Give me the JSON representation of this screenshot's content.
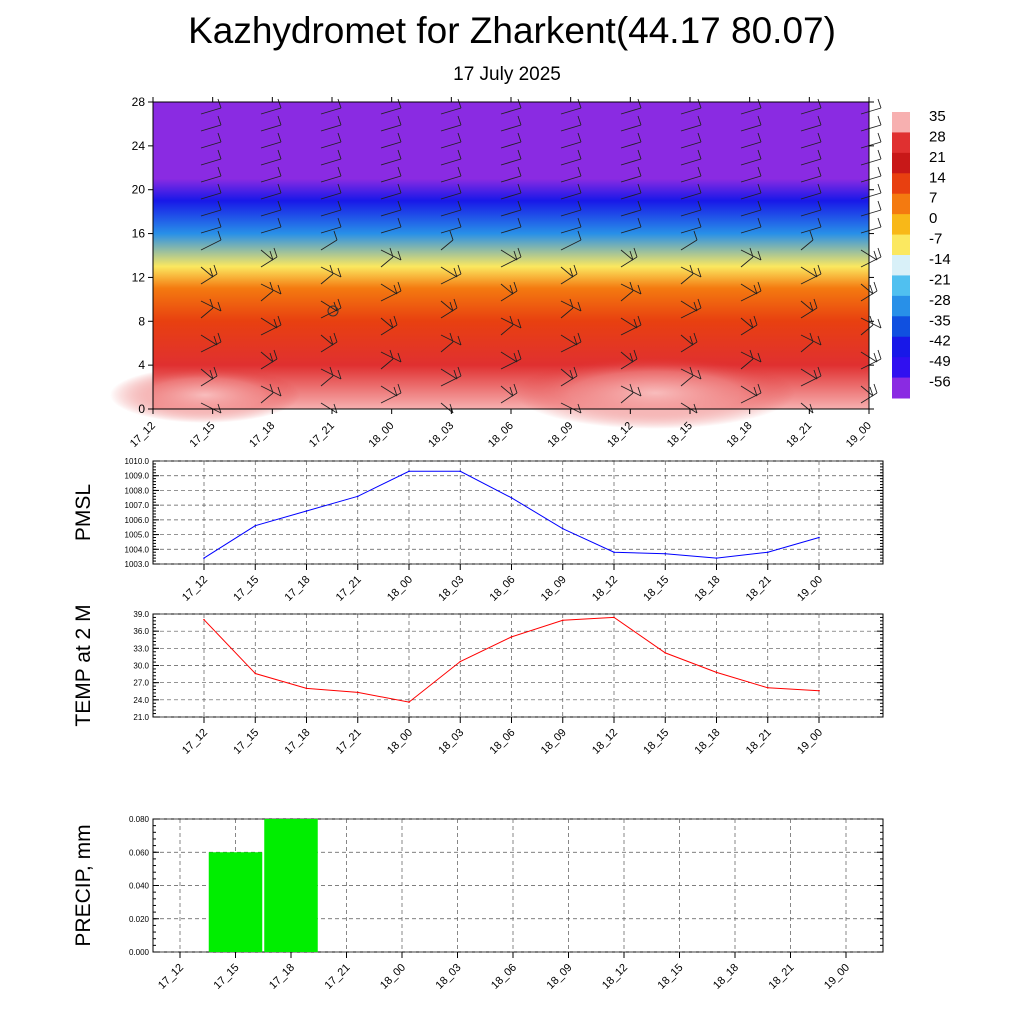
{
  "title": "Kazhydromet for Zharkent(44.17 80.07)",
  "subtitle": "17 July 2025",
  "chart_data": [
    {
      "type": "heatmap",
      "x_categories": [
        "17_12",
        "17_15",
        "17_18",
        "17_21",
        "18_00",
        "18_03",
        "18_06",
        "18_09",
        "18_12",
        "18_15",
        "18_18",
        "18_21",
        "19_00"
      ],
      "y_ticks": [
        "0",
        "4",
        "8",
        "12",
        "16",
        "20",
        "24",
        "28"
      ],
      "ylim": [
        0,
        28
      ],
      "colorbar_labels": [
        "35",
        "28",
        "21",
        "14",
        "7",
        "0",
        "-7",
        "-14",
        "-21",
        "-28",
        "-35",
        "-42",
        "-49",
        "-56"
      ],
      "colorbar_colors": [
        "#f7b0b0",
        "#e03030",
        "#c81818",
        "#e84010",
        "#f47a10",
        "#f8b818",
        "#fbe860",
        "#d8f0f8",
        "#50c0f0",
        "#2890e8",
        "#1050e0",
        "#1818e8",
        "#3010f0",
        "#8a2be2"
      ],
      "profile": [
        {
          "level": 0,
          "value": 33
        },
        {
          "level": 4,
          "value": 27
        },
        {
          "level": 8,
          "value": 14
        },
        {
          "level": 11,
          "value": 2
        },
        {
          "level": 13,
          "value": -10
        },
        {
          "level": 16,
          "value": -30
        },
        {
          "level": 19,
          "value": -45
        },
        {
          "level": 21,
          "value": -56
        },
        {
          "level": 23,
          "value": -60
        },
        {
          "level": 28,
          "value": -60
        }
      ]
    },
    {
      "type": "line",
      "ylabel": "PMSL",
      "categories": [
        "17_12",
        "17_15",
        "17_18",
        "17_21",
        "18_00",
        "18_03",
        "18_06",
        "18_09",
        "18_12",
        "18_15",
        "18_18",
        "18_21",
        "19_00"
      ],
      "series": [
        {
          "values": [
            1003.4,
            1005.6,
            1006.6,
            1007.6,
            1009.3,
            1009.3,
            1007.5,
            1005.4,
            1003.8,
            1003.7,
            1003.4,
            1003.8,
            1004.8
          ],
          "color": "#0000ff"
        }
      ],
      "ylim": [
        1003.0,
        1010.0
      ],
      "y_ticks": [
        "1003.0",
        "1004.0",
        "1005.0",
        "1006.0",
        "1007.0",
        "1008.0",
        "1009.0",
        "1010.0"
      ]
    },
    {
      "type": "line",
      "ylabel": "TEMP at 2 M",
      "categories": [
        "17_12",
        "17_15",
        "17_18",
        "17_21",
        "18_00",
        "18_03",
        "18_06",
        "18_09",
        "18_12",
        "18_15",
        "18_18",
        "18_21",
        "19_00"
      ],
      "series": [
        {
          "values": [
            38.0,
            28.6,
            26.0,
            25.3,
            23.6,
            30.7,
            35.0,
            37.9,
            38.4,
            32.2,
            28.8,
            26.1,
            25.6
          ],
          "color": "#ff0000"
        }
      ],
      "ylim": [
        21.0,
        39.0
      ],
      "y_ticks": [
        "21.0",
        "24.0",
        "27.0",
        "30.0",
        "33.0",
        "36.0",
        "39.0"
      ]
    },
    {
      "type": "bar",
      "ylabel": "PRECIP, mm",
      "categories": [
        "17_12",
        "17_15",
        "17_18",
        "17_21",
        "18_00",
        "18_03",
        "18_06",
        "18_09",
        "18_12",
        "18_15",
        "18_18",
        "18_21",
        "19_00"
      ],
      "series": [
        {
          "values": [
            0,
            0.06,
            0.08,
            0,
            0,
            0,
            0,
            0,
            0,
            0,
            0,
            0,
            0
          ],
          "color": "#00ee00"
        }
      ],
      "ylim": [
        0,
        0.08
      ],
      "y_ticks": [
        "0.000",
        "0.020",
        "0.040",
        "0.060",
        "0.080"
      ]
    }
  ]
}
